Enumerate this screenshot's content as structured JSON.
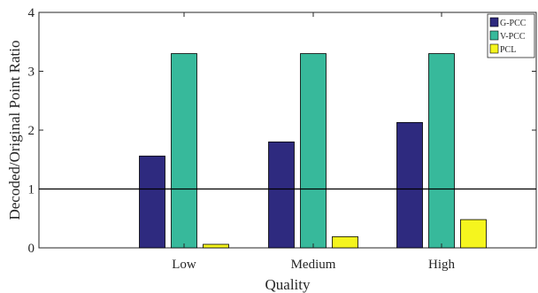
{
  "chart_data": {
    "type": "bar",
    "categories": [
      "Low",
      "Medium",
      "High"
    ],
    "series": [
      {
        "name": "G-PCC",
        "color": "#2e2a7f",
        "values": [
          1.56,
          1.8,
          2.13
        ]
      },
      {
        "name": "V-PCC",
        "color": "#37b99b",
        "values": [
          3.3,
          3.3,
          3.3
        ]
      },
      {
        "name": "PCL",
        "color": "#f5f51e",
        "values": [
          0.06,
          0.19,
          0.48
        ]
      }
    ],
    "xlabel": "Quality",
    "ylabel": "Decoded/Original Point Ratio",
    "ylim": [
      0,
      4
    ],
    "yticks": [
      "0",
      "1",
      "2",
      "3",
      "4"
    ],
    "reference_line": 1,
    "grid": false,
    "legend_position": "top-right"
  }
}
